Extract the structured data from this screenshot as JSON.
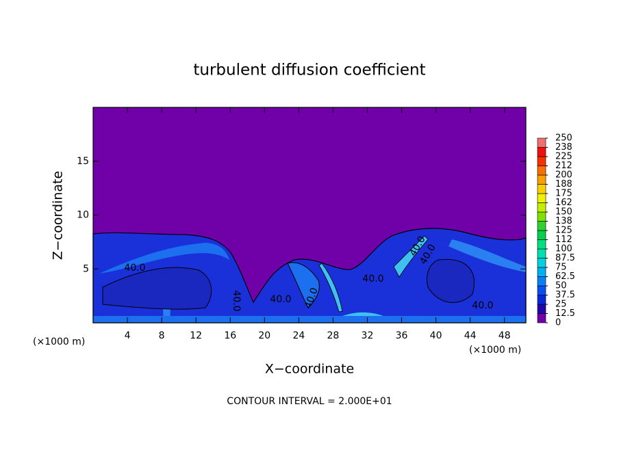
{
  "chart_data": {
    "type": "contour",
    "title": "turbulent diffusion coefficient",
    "x_label": "X−coordinate",
    "y_label": "Z−coordinate",
    "x_unit_labels": [
      "(×1000 m)",
      "(×1000 m)"
    ],
    "xlim": [
      0,
      50.5
    ],
    "xticks": [
      4,
      8,
      12,
      16,
      20,
      24,
      28,
      32,
      36,
      40,
      44,
      48
    ],
    "ylim": [
      0,
      20
    ],
    "yticks": [
      5,
      10,
      15
    ],
    "clim": [
      0,
      250
    ],
    "cticks": [
      0,
      12.5,
      25,
      37.5,
      50,
      62.5,
      75,
      87.5,
      100,
      {
        "value": 112.5,
        "label": "112"
      },
      125,
      {
        "value": 137.5,
        "label": "138"
      },
      150,
      {
        "value": 162.5,
        "label": "162"
      },
      175,
      {
        "value": 187.5,
        "label": "188"
      },
      200,
      {
        "value": 212.5,
        "label": "212"
      },
      225,
      {
        "value": 237.5,
        "label": "238"
      },
      250
    ],
    "colors": [
      "#7000a8",
      "#2008b0",
      "#0a28d8",
      "#0a50f0",
      "#0a80f8",
      "#00b0f0",
      "#00d0e0",
      "#00e0b0",
      "#00e080",
      "#00d050",
      "#30d030",
      "#80e000",
      "#c0f000",
      "#f0f000",
      "#f8d000",
      "#f8a000",
      "#f87000",
      "#f83000",
      "#f01010",
      "#f07070"
    ],
    "contour_labels": [
      "40.0",
      "40.0",
      "40.0",
      "40.0",
      "40.0",
      "40.0",
      "40.0",
      "40.0"
    ],
    "contour_interval": "CONTOUR INTERVAL = 2.000E+01"
  }
}
